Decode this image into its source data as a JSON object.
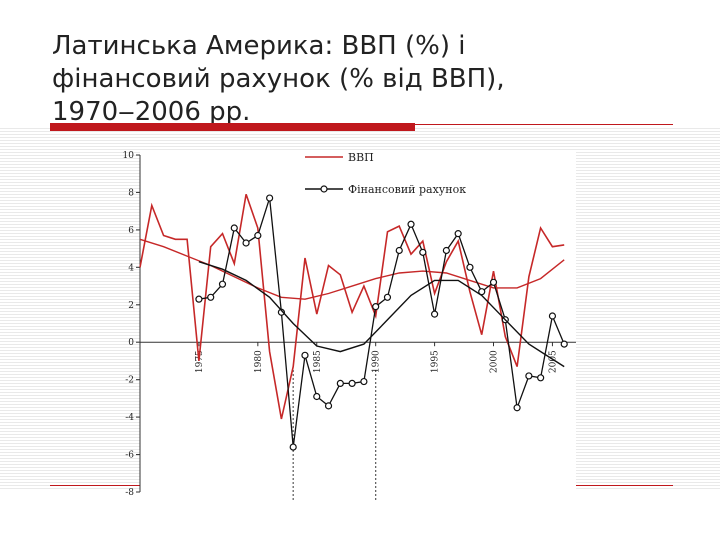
{
  "slide": {
    "title_lines": [
      "Латинська Америка: ВВП (%) і",
      "фінансовий рахунок (% від ВВП),",
      "1970‒2006 рр."
    ]
  },
  "colors": {
    "gdp": "#c62828",
    "financial": "#111111",
    "accent": "#c0181d"
  },
  "chart_data": {
    "type": "line",
    "xlim": [
      1970,
      2007
    ],
    "ylim": [
      -8,
      10
    ],
    "yticks": [
      10,
      8,
      6,
      4,
      2,
      0,
      -2,
      -4,
      -6,
      -8
    ],
    "xticks": [
      {
        "value": 1975,
        "label": "1975"
      },
      {
        "value": 1980,
        "label": "1980"
      },
      {
        "value": 1985,
        "label": "1985"
      },
      {
        "value": 1990,
        "label": "1990"
      },
      {
        "value": 1995,
        "label": "1995"
      },
      {
        "value": 2000,
        "label": "2000"
      },
      {
        "value": 2005,
        "label": "2005"
      }
    ],
    "legend": {
      "position": "top-center"
    },
    "series": [
      {
        "name": "ВВП",
        "color": "#c62828",
        "style": "line",
        "x": [
          1970,
          1971,
          1972,
          1973,
          1974,
          1975,
          1976,
          1977,
          1978,
          1979,
          1980,
          1981,
          1982,
          1983,
          1984,
          1985,
          1986,
          1987,
          1988,
          1989,
          1990,
          1991,
          1992,
          1993,
          1994,
          1995,
          1996,
          1997,
          1998,
          1999,
          2000,
          2001,
          2002,
          2003,
          2004,
          2005,
          2006
        ],
        "y": [
          4.0,
          7.3,
          5.7,
          5.5,
          5.5,
          -1.0,
          5.1,
          5.8,
          4.2,
          7.9,
          6.1,
          -0.5,
          -4.1,
          -1.3,
          4.5,
          1.5,
          4.1,
          3.6,
          1.6,
          3.0,
          1.4,
          5.9,
          6.2,
          4.7,
          5.4,
          2.6,
          4.3,
          5.4,
          2.7,
          0.4,
          3.8,
          0.3,
          -1.3,
          3.5,
          6.1,
          5.1,
          5.2
        ]
      },
      {
        "name": "",
        "color": "#c62828",
        "style": "trend",
        "x": [
          1970,
          1972,
          1974,
          1976,
          1978,
          1980,
          1982,
          1984,
          1986,
          1988,
          1990,
          1992,
          1994,
          1996,
          1998,
          2000,
          2002,
          2004,
          2006
        ],
        "y": [
          5.5,
          5.1,
          4.6,
          4.1,
          3.5,
          2.9,
          2.4,
          2.3,
          2.6,
          3.0,
          3.4,
          3.7,
          3.8,
          3.7,
          3.3,
          2.9,
          2.9,
          3.4,
          4.4
        ]
      },
      {
        "name": "Фінансовий рахунок",
        "color": "#111111",
        "style": "markers",
        "x": [
          1975,
          1976,
          1977,
          1978,
          1979,
          1980,
          1981,
          1982,
          1983,
          1984,
          1985,
          1986,
          1987,
          1988,
          1989,
          1990,
          1991,
          1992,
          1993,
          1994,
          1995,
          1996,
          1997,
          1998,
          1999,
          2000,
          2001,
          2002,
          2003,
          2004,
          2005,
          2006
        ],
        "y": [
          2.3,
          2.4,
          3.1,
          6.1,
          5.3,
          5.7,
          7.7,
          1.6,
          -5.6,
          -0.7,
          -2.9,
          -3.4,
          -2.2,
          -2.2,
          -2.1,
          1.9,
          2.4,
          4.9,
          6.3,
          4.8,
          1.5,
          4.9,
          5.8,
          4.0,
          2.7,
          3.2,
          1.2,
          -3.5,
          -1.8,
          -1.9,
          1.4,
          -0.1
        ]
      },
      {
        "name": "",
        "color": "#111111",
        "style": "trend",
        "x": [
          1975,
          1977,
          1979,
          1981,
          1983,
          1985,
          1987,
          1989,
          1991,
          1993,
          1995,
          1997,
          1999,
          2001,
          2003,
          2005,
          2006
        ],
        "y": [
          4.3,
          3.9,
          3.3,
          2.4,
          1.0,
          -0.2,
          -0.5,
          -0.1,
          1.2,
          2.5,
          3.3,
          3.3,
          2.5,
          1.2,
          -0.1,
          -0.9,
          -1.3
        ]
      }
    ],
    "annotations": {
      "dotted_vertical_lines_at_x": [
        1983,
        1990
      ]
    }
  }
}
